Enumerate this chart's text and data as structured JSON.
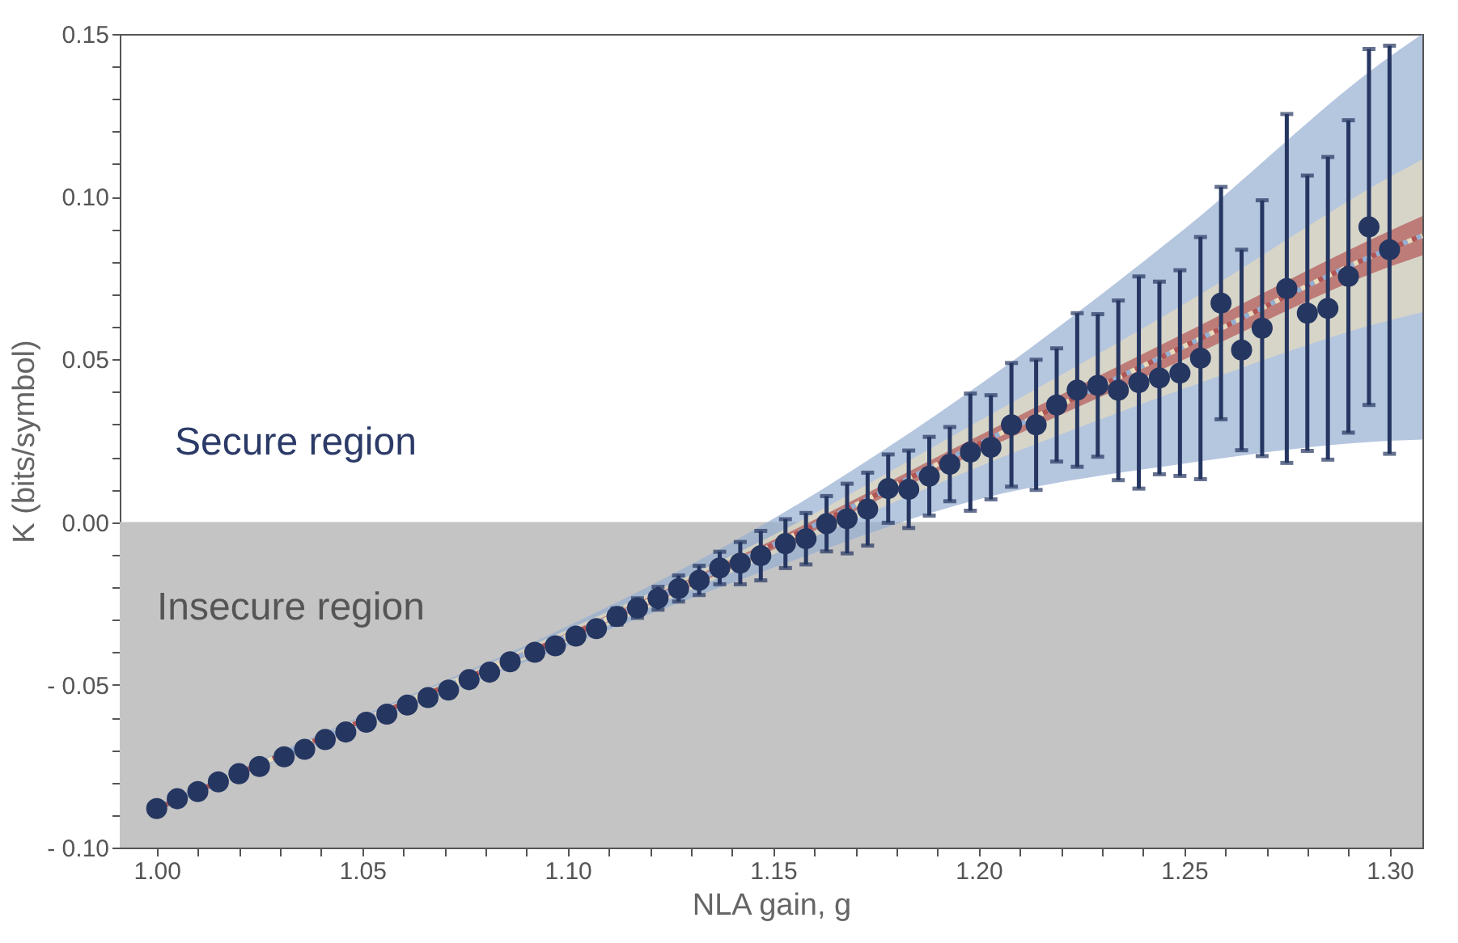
{
  "chart_data": {
    "type": "scatter",
    "xlabel": "NLA gain, g",
    "ylabel": "K (bits/symbol)",
    "annotations": [
      "Secure region",
      "Insecure region"
    ],
    "xlim": [
      0.991,
      1.308
    ],
    "ylim": [
      -0.1,
      0.15
    ],
    "xticks": [
      {
        "value": 1,
        "label": "1.00"
      },
      {
        "value": 1.01,
        "label": null
      },
      {
        "value": 1.02,
        "label": null
      },
      {
        "value": 1.03,
        "label": null
      },
      {
        "value": 1.04,
        "label": null
      },
      {
        "value": 1.05,
        "label": "1.05"
      },
      {
        "value": 1.06,
        "label": null
      },
      {
        "value": 1.07,
        "label": null
      },
      {
        "value": 1.08,
        "label": null
      },
      {
        "value": 1.09,
        "label": null
      },
      {
        "value": 1.1,
        "label": "1.10"
      },
      {
        "value": 1.11,
        "label": null
      },
      {
        "value": 1.12,
        "label": null
      },
      {
        "value": 1.13,
        "label": null
      },
      {
        "value": 1.14,
        "label": null
      },
      {
        "value": 1.15,
        "label": "1.15"
      },
      {
        "value": 1.16,
        "label": null
      },
      {
        "value": 1.17,
        "label": null
      },
      {
        "value": 1.18,
        "label": null
      },
      {
        "value": 1.19,
        "label": null
      },
      {
        "value": 1.2,
        "label": "1.20"
      },
      {
        "value": 1.21,
        "label": null
      },
      {
        "value": 1.22,
        "label": null
      },
      {
        "value": 1.23,
        "label": null
      },
      {
        "value": 1.24,
        "label": null
      },
      {
        "value": 1.25,
        "label": "1.25"
      },
      {
        "value": 1.26,
        "label": null
      },
      {
        "value": 1.27,
        "label": null
      },
      {
        "value": 1.28,
        "label": null
      },
      {
        "value": 1.29,
        "label": null
      },
      {
        "value": 1.3,
        "label": "1.30"
      }
    ],
    "yticks": [
      {
        "value": -0.1,
        "label": "- 0.10"
      },
      {
        "value": -0.09,
        "label": null
      },
      {
        "value": -0.08,
        "label": null
      },
      {
        "value": -0.07,
        "label": null
      },
      {
        "value": -0.06,
        "label": null
      },
      {
        "value": -0.05,
        "label": "- 0.05"
      },
      {
        "value": -0.04,
        "label": null
      },
      {
        "value": -0.03,
        "label": null
      },
      {
        "value": -0.02,
        "label": null
      },
      {
        "value": -0.01,
        "label": null
      },
      {
        "value": 0,
        "label": "0.00"
      },
      {
        "value": 0.01,
        "label": null
      },
      {
        "value": 0.02,
        "label": null
      },
      {
        "value": 0.03,
        "label": null
      },
      {
        "value": 0.04,
        "label": null
      },
      {
        "value": 0.05,
        "label": "0.05"
      },
      {
        "value": 0.06,
        "label": null
      },
      {
        "value": 0.07,
        "label": null
      },
      {
        "value": 0.08,
        "label": null
      },
      {
        "value": 0.09,
        "label": null
      },
      {
        "value": 0.1,
        "label": "0.10"
      },
      {
        "value": 0.11,
        "label": null
      },
      {
        "value": 0.12,
        "label": null
      },
      {
        "value": 0.13,
        "label": null
      },
      {
        "value": 0.14,
        "label": null
      },
      {
        "value": 0.15,
        "label": "0.15"
      }
    ],
    "grid": false,
    "bands": [
      {
        "axis": "y",
        "from": -0.1,
        "to": 0,
        "color": "#c4c4c4"
      }
    ],
    "series": [
      {
        "type": "line",
        "color": "#95aed2",
        "line_style": "dotted",
        "x": [
          1,
          1.05,
          1.1,
          1.15,
          1.2,
          1.25,
          1.3,
          1.308
        ],
        "values": [
          -0.088,
          -0.061,
          -0.035,
          -0.007,
          0.024,
          0.054,
          0.084,
          0.088
        ],
        "lower": [
          -0.089,
          -0.0625,
          -0.038,
          -0.014,
          0.007,
          0.018,
          0.025,
          0.0254
        ],
        "upper": [
          -0.087,
          -0.0595,
          -0.032,
          0.001,
          0.042,
          0.09,
          0.143,
          0.15
        ]
      },
      {
        "type": "line",
        "color": "#e6dcbd",
        "line_style": "dotted",
        "x": [
          1,
          1.05,
          1.1,
          1.15,
          1.2,
          1.25,
          1.3,
          1.308
        ],
        "values": [
          -0.088,
          -0.061,
          -0.035,
          -0.007,
          0.024,
          0.054,
          0.084,
          0.088
        ],
        "lower": [
          -0.0885,
          -0.062,
          -0.037,
          -0.01,
          0.017,
          0.041,
          0.062,
          0.0645
        ],
        "upper": [
          -0.0875,
          -0.06,
          -0.033,
          -0.004,
          0.031,
          0.067,
          0.106,
          0.1115
        ]
      },
      {
        "type": "line",
        "color": "#b25656",
        "line_style": "dotted",
        "x": [
          1,
          1.05,
          1.1,
          1.15,
          1.2,
          1.25,
          1.3,
          1.308
        ],
        "values": [
          -0.088,
          -0.061,
          -0.035,
          -0.007,
          0.024,
          0.054,
          0.084,
          0.088
        ],
        "lower": [
          -0.0883,
          -0.0615,
          -0.036,
          -0.0085,
          0.0215,
          0.05,
          0.0785,
          0.082
        ],
        "upper": [
          -0.0877,
          -0.0605,
          -0.034,
          -0.0055,
          0.0265,
          0.058,
          0.0895,
          0.094
        ]
      },
      {
        "color": "#253661",
        "marker": "circle",
        "x": [
          1.0,
          1.005,
          1.01,
          1.015,
          1.02,
          1.025,
          1.031,
          1.036,
          1.041,
          1.046,
          1.051,
          1.056,
          1.061,
          1.066,
          1.071,
          1.076,
          1.081,
          1.086,
          1.092,
          1.097,
          1.102,
          1.107,
          1.112,
          1.117,
          1.122,
          1.127,
          1.132,
          1.137,
          1.142,
          1.147,
          1.153,
          1.158,
          1.163,
          1.168,
          1.173,
          1.178,
          1.183,
          1.188,
          1.193,
          1.198,
          1.203,
          1.208,
          1.214,
          1.219,
          1.224,
          1.229,
          1.234,
          1.239,
          1.244,
          1.249,
          1.254,
          1.259,
          1.264,
          1.269,
          1.275,
          1.28,
          1.285,
          1.29,
          1.295,
          1.3
        ],
        "values": [
          -0.088,
          -0.085,
          -0.0828,
          -0.0798,
          -0.0773,
          -0.0751,
          -0.0721,
          -0.0698,
          -0.0668,
          -0.0645,
          -0.0615,
          -0.059,
          -0.0562,
          -0.0539,
          -0.0516,
          -0.0484,
          -0.0461,
          -0.0429,
          -0.04,
          -0.038,
          -0.035,
          -0.0327,
          -0.029,
          -0.0264,
          -0.0234,
          -0.0204,
          -0.0179,
          -0.0141,
          -0.0126,
          -0.0103,
          -0.0066,
          -0.0051,
          -0.0005,
          0.0011,
          0.004,
          0.0103,
          0.0101,
          0.0141,
          0.0178,
          0.0215,
          0.023,
          0.0299,
          0.0299,
          0.036,
          0.0406,
          0.042,
          0.0405,
          0.0429,
          0.0443,
          0.0458,
          0.0504,
          0.0673,
          0.0529,
          0.0596,
          0.0718,
          0.0642,
          0.0657,
          0.0755,
          0.0907,
          0.0837
        ],
        "errors": [
          null,
          null,
          null,
          null,
          null,
          null,
          null,
          null,
          null,
          null,
          null,
          null,
          null,
          null,
          null,
          null,
          null,
          null,
          null,
          0.001,
          0.0015,
          0.002,
          0.0025,
          0.003,
          0.0035,
          0.004,
          0.0045,
          0.005,
          0.0065,
          0.0076,
          0.0075,
          0.0079,
          0.0085,
          0.0107,
          0.0112,
          0.0105,
          0.0119,
          0.0121,
          0.0114,
          0.018,
          0.016,
          0.019,
          0.02,
          0.0174,
          0.0236,
          0.0219,
          0.0276,
          0.0326,
          0.0296,
          0.0316,
          0.0372,
          0.0357,
          0.0308,
          0.0393,
          0.0536,
          0.0423,
          0.0465,
          0.048,
          0.0547,
          0.0627
        ]
      }
    ]
  }
}
